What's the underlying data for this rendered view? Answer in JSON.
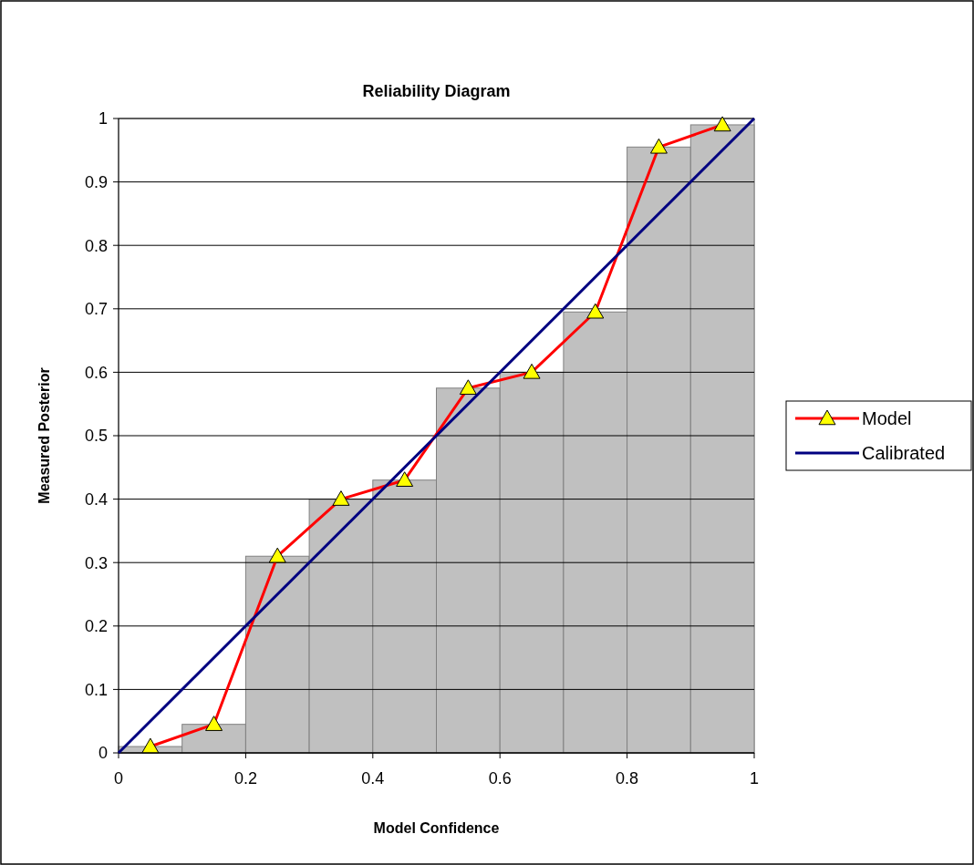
{
  "chart_data": {
    "type": "histogram",
    "title": "Reliability Diagram",
    "xlabel": "Model Confidence",
    "ylabel": "Measured Posterior",
    "bins": [
      0,
      0.1,
      0.2,
      0.3,
      0.4,
      0.5,
      0.6,
      0.7,
      0.8,
      0.9,
      1
    ],
    "values": [
      0.01,
      0.045,
      0.31,
      0.4,
      0.43,
      0.575,
      0.6,
      0.695,
      0.955,
      0.99
    ],
    "color": "#c0c0c0",
    "series": [
      {
        "name": "Model",
        "type": "line",
        "color": "#ff0000",
        "marker": "triangle",
        "x": [
          0.05,
          0.15,
          0.25,
          0.35,
          0.45,
          0.55,
          0.65,
          0.75,
          0.85,
          0.95
        ],
        "values": [
          0.01,
          0.045,
          0.31,
          0.4,
          0.43,
          0.575,
          0.6,
          0.695,
          0.955,
          0.99
        ]
      },
      {
        "name": "Calibrated",
        "type": "line",
        "color": "#000080",
        "marker": "none",
        "x": [
          0,
          1
        ],
        "values": [
          0,
          1
        ]
      }
    ],
    "xlim": [
      0,
      1
    ],
    "xticks": [
      0,
      0.2,
      0.4,
      0.6,
      0.8,
      1
    ],
    "ylim": [
      0,
      1
    ],
    "yticks": [
      0,
      0.1,
      0.2,
      0.3,
      0.4,
      0.5,
      0.6,
      0.7,
      0.8,
      0.9,
      1
    ],
    "grid": "y",
    "legend": "right"
  }
}
